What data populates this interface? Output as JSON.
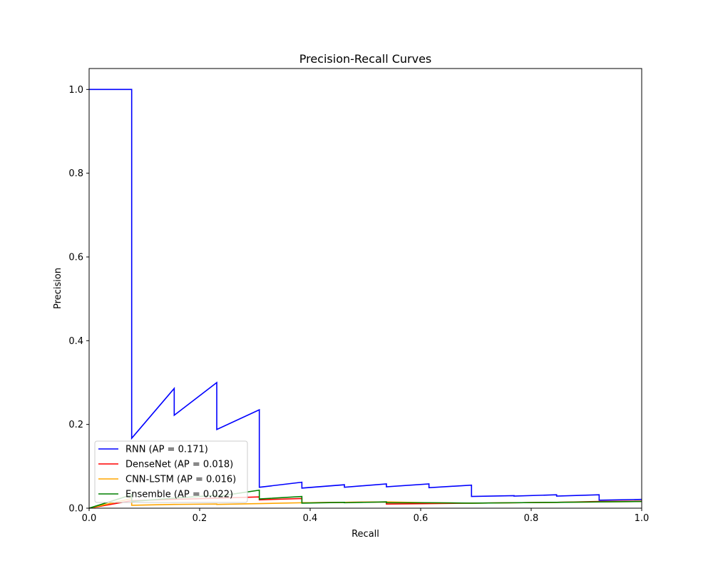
{
  "chart_data": {
    "type": "line",
    "title": "Precision-Recall Curves",
    "xlabel": "Recall",
    "ylabel": "Precision",
    "xlim": [
      0,
      1
    ],
    "ylim": [
      0,
      1.05
    ],
    "xticks": [
      0.0,
      0.2,
      0.4,
      0.6,
      0.8,
      1.0
    ],
    "yticks": [
      0.0,
      0.2,
      0.4,
      0.6,
      0.8,
      1.0
    ],
    "xtick_labels": [
      "0.0",
      "0.2",
      "0.4",
      "0.6",
      "0.8",
      "1.0"
    ],
    "ytick_labels": [
      "0.0",
      "0.2",
      "0.4",
      "0.6",
      "0.8",
      "1.0"
    ],
    "grid": false,
    "legend_position": "lower left",
    "series": [
      {
        "name": "RNN (AP = 0.171)",
        "color": "#0000ff",
        "points": [
          [
            0.0,
            1.0
          ],
          [
            0.077,
            1.0
          ],
          [
            0.077,
            0.167
          ],
          [
            0.154,
            0.286
          ],
          [
            0.154,
            0.222
          ],
          [
            0.231,
            0.3
          ],
          [
            0.231,
            0.188
          ],
          [
            0.308,
            0.235
          ],
          [
            0.308,
            0.05
          ],
          [
            0.385,
            0.062
          ],
          [
            0.385,
            0.048
          ],
          [
            0.462,
            0.056
          ],
          [
            0.462,
            0.05
          ],
          [
            0.538,
            0.058
          ],
          [
            0.538,
            0.051
          ],
          [
            0.615,
            0.058
          ],
          [
            0.615,
            0.049
          ],
          [
            0.692,
            0.055
          ],
          [
            0.692,
            0.028
          ],
          [
            0.769,
            0.03
          ],
          [
            0.769,
            0.029
          ],
          [
            0.846,
            0.032
          ],
          [
            0.846,
            0.029
          ],
          [
            0.923,
            0.032
          ],
          [
            0.923,
            0.019
          ],
          [
            1.0,
            0.021
          ]
        ]
      },
      {
        "name": "DenseNet (AP = 0.018)",
        "color": "#ff0000",
        "points": [
          [
            0.0,
            0.0
          ],
          [
            0.077,
            0.018
          ],
          [
            0.154,
            0.021
          ],
          [
            0.231,
            0.024
          ],
          [
            0.308,
            0.027
          ],
          [
            0.308,
            0.02
          ],
          [
            0.385,
            0.023
          ],
          [
            0.385,
            0.013
          ],
          [
            0.462,
            0.014
          ],
          [
            0.538,
            0.015
          ],
          [
            0.538,
            0.01
          ],
          [
            0.615,
            0.011
          ],
          [
            0.692,
            0.012
          ],
          [
            0.769,
            0.013
          ],
          [
            0.846,
            0.014
          ],
          [
            0.923,
            0.016
          ],
          [
            1.0,
            0.017
          ]
        ]
      },
      {
        "name": "CNN-LSTM (AP = 0.016)",
        "color": "#ffa500",
        "points": [
          [
            0.0,
            0.0
          ],
          [
            0.077,
            0.023
          ],
          [
            0.077,
            0.007
          ],
          [
            0.154,
            0.009
          ],
          [
            0.231,
            0.01
          ],
          [
            0.231,
            0.009
          ],
          [
            0.308,
            0.011
          ],
          [
            0.385,
            0.013
          ],
          [
            0.462,
            0.014
          ],
          [
            0.538,
            0.015
          ],
          [
            0.615,
            0.013
          ],
          [
            0.692,
            0.012
          ],
          [
            0.769,
            0.013
          ],
          [
            0.846,
            0.014
          ],
          [
            0.923,
            0.015
          ],
          [
            1.0,
            0.016
          ]
        ]
      },
      {
        "name": "Ensemble (AP = 0.022)",
        "color": "#008000",
        "points": [
          [
            0.0,
            0.0
          ],
          [
            0.077,
            0.032
          ],
          [
            0.077,
            0.016
          ],
          [
            0.154,
            0.024
          ],
          [
            0.231,
            0.031
          ],
          [
            0.231,
            0.028
          ],
          [
            0.308,
            0.043
          ],
          [
            0.308,
            0.022
          ],
          [
            0.385,
            0.028
          ],
          [
            0.385,
            0.012
          ],
          [
            0.462,
            0.014
          ],
          [
            0.462,
            0.013
          ],
          [
            0.538,
            0.015
          ],
          [
            0.538,
            0.013
          ],
          [
            0.615,
            0.013
          ],
          [
            0.692,
            0.012
          ],
          [
            0.769,
            0.013
          ],
          [
            0.846,
            0.014
          ],
          [
            0.923,
            0.015
          ],
          [
            1.0,
            0.016
          ]
        ]
      }
    ]
  }
}
